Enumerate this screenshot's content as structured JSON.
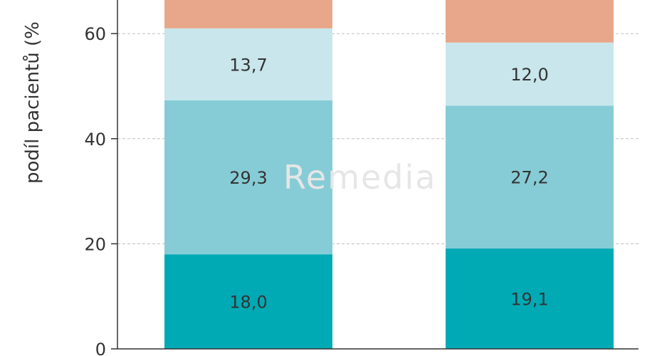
{
  "chart_data": {
    "type": "bar",
    "stacked": true,
    "categories": [
      "",
      ""
    ],
    "ylabel": "podíl pacientů (%",
    "ylim": [
      0,
      68
    ],
    "yticks": [
      0,
      20,
      40,
      60
    ],
    "ytick_labels": [
      "0",
      "20",
      "40",
      "60"
    ],
    "grid": true,
    "series": [
      {
        "color": "#00aab5",
        "values": [
          18.0,
          19.1
        ],
        "labels": [
          "18,0",
          "19,1"
        ]
      },
      {
        "color": "#86ccd6",
        "values": [
          29.3,
          27.2
        ],
        "labels": [
          "29,3",
          "27,2"
        ]
      },
      {
        "color": "#c8e6ec",
        "values": [
          13.7,
          12.0
        ],
        "labels": [
          "13,7",
          "12,0"
        ]
      },
      {
        "color": "#e8a68a",
        "values": [
          null,
          null
        ],
        "labels": [
          "",
          ""
        ]
      }
    ]
  },
  "watermark": "Remedia"
}
